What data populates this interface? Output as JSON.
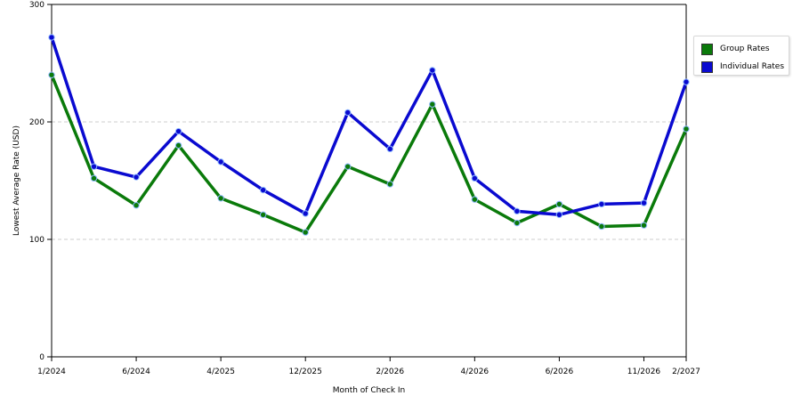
{
  "chart_data": {
    "type": "line",
    "title": "",
    "xlabel": "Month of Check In",
    "ylabel": "Lowest Average Rate (USD)",
    "ylim": [
      0,
      300
    ],
    "yticks": [
      "0",
      "100",
      "200",
      "300"
    ],
    "grid": "horizontal dashed",
    "legend_position": "right",
    "point_count": 16,
    "xtick_labels": [
      {
        "index": 0,
        "label": "1/2024"
      },
      {
        "index": 2,
        "label": "6/2024"
      },
      {
        "index": 4,
        "label": "4/2025"
      },
      {
        "index": 6,
        "label": "12/2025"
      },
      {
        "index": 8,
        "label": "2/2026"
      },
      {
        "index": 10,
        "label": "4/2026"
      },
      {
        "index": 12,
        "label": "6/2026"
      },
      {
        "index": 14,
        "label": "11/2026"
      },
      {
        "index": 15,
        "label": "2/2027"
      }
    ],
    "series": [
      {
        "name": "Group Rates",
        "color": "#0a7a0a",
        "values": [
          240,
          152,
          129,
          180,
          135,
          121,
          106,
          162,
          147,
          215,
          134,
          114,
          130,
          111,
          112,
          194
        ]
      },
      {
        "name": "Individual Rates",
        "color": "#0a0ad0",
        "values": [
          272,
          162,
          153,
          192,
          166,
          142,
          122,
          208,
          177,
          244,
          152,
          124,
          121,
          130,
          131,
          234
        ]
      }
    ]
  }
}
